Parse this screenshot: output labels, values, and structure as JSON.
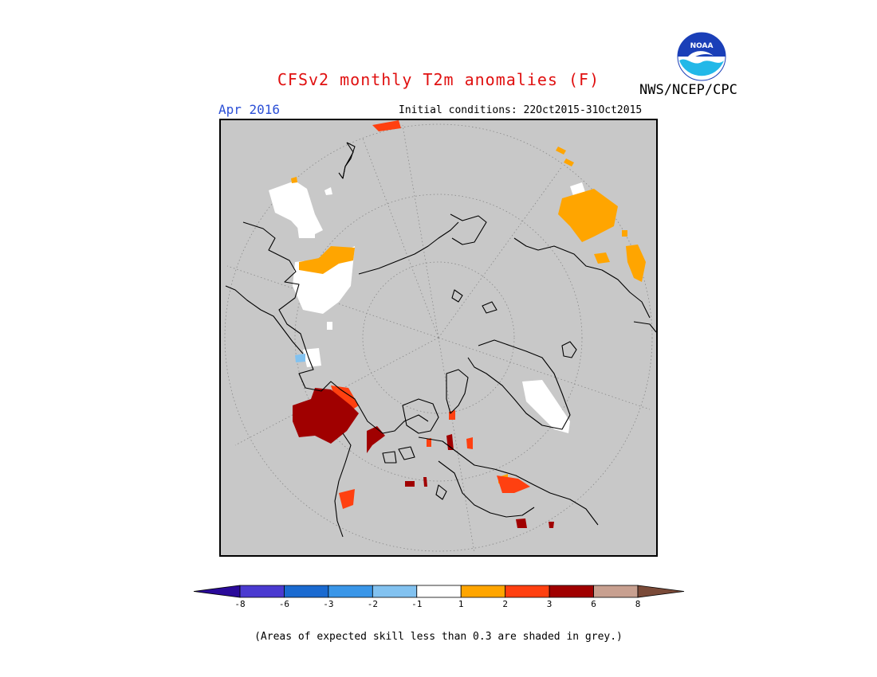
{
  "header": {
    "title": "CFSv2 monthly T2m anomalies (F)",
    "month": "Apr 2016",
    "initial_conditions": "Initial conditions: 22Oct2015-31Oct2015",
    "agency": "NWS/NCEP/CPC",
    "logo_text": "NOAA"
  },
  "colors": {
    "title": "#e01010",
    "month": "#2b4fd6",
    "ocean_grey": "#c8c8c8"
  },
  "legend": {
    "tick_labels": [
      "-8",
      "-6",
      "-3",
      "-2",
      "-1",
      "1",
      "2",
      "3",
      "6",
      "8"
    ],
    "bins": [
      {
        "color": "#2a0a9a"
      },
      {
        "color": "#4a3ad0"
      },
      {
        "color": "#1a6ad0"
      },
      {
        "color": "#3a96e8"
      },
      {
        "color": "#82c2f0"
      },
      {
        "color": "#ffffff"
      },
      {
        "color": "#ffa500"
      },
      {
        "color": "#ff4010"
      },
      {
        "color": "#a00000"
      },
      {
        "color": "#c8a090"
      },
      {
        "color": "#7a4a38"
      }
    ]
  },
  "footer": {
    "skill_note": "(Areas of expected skill less than 0.3 are shaded in grey.)"
  }
}
